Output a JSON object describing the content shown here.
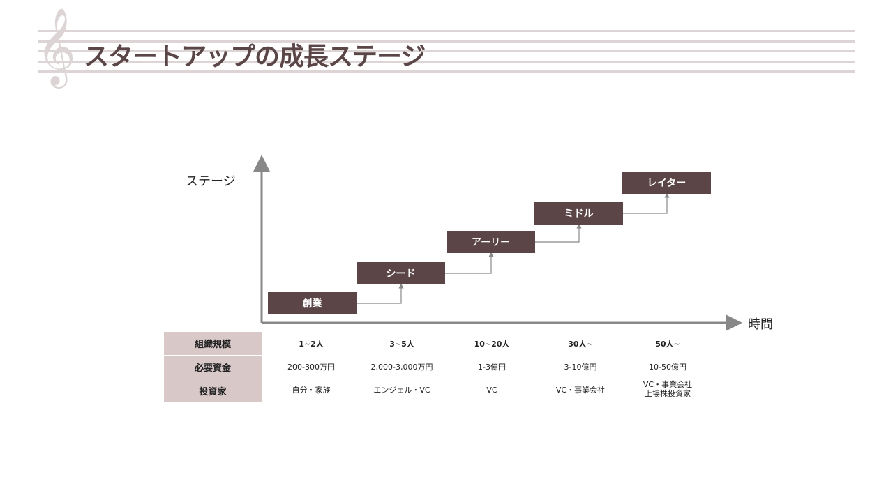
{
  "title": "スタートアップの成長ステージ",
  "y_axis_label": "ステージ",
  "x_axis_label": "時間",
  "stages": [
    "創業",
    "シード",
    "アーリー",
    "ミドル",
    "レイター"
  ],
  "table": {
    "row_headers": [
      "組織規模",
      "必要資金",
      "投資家"
    ],
    "columns": [
      [
        "1~2人",
        "200-300万円",
        "自分・家族"
      ],
      [
        "3~5人",
        "2,000-3,000万円",
        "エンジェル・VC"
      ],
      [
        "10~20人",
        "1-3億円",
        "VC"
      ],
      [
        "30人~",
        "3-10億円",
        "VC・事業会社"
      ],
      [
        "50人~",
        "10-50億円",
        "VC・事業会社\n上場株投資家"
      ]
    ]
  },
  "colors": {
    "box": "#5b4547",
    "header": "#d9c8c8",
    "staff": "#ddd5d5",
    "title": "#5a4646"
  }
}
